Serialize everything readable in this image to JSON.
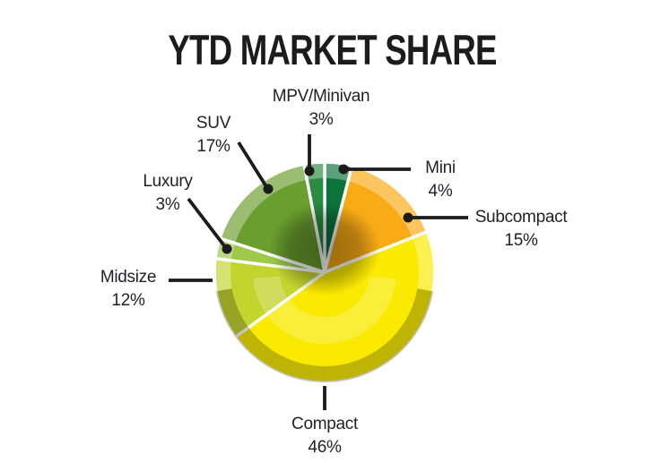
{
  "title": "YTD MARKET SHARE",
  "colors": {
    "title_text": "#1d1b1c",
    "label_text": "#221f26",
    "leader_line": "#1c1a1b",
    "background": "#ffffff"
  },
  "chart_data": {
    "type": "pie",
    "title": "YTD MARKET SHARE",
    "unit": "%",
    "start_angle_deg": 0,
    "direction": "clockwise",
    "legend_position": "callout-labels",
    "slices": [
      {
        "id": "mini",
        "label": "Mini",
        "value": 4,
        "pct_label": "4%",
        "color": "#0d733c"
      },
      {
        "id": "subcompact",
        "label": "Subcompact",
        "value": 15,
        "pct_label": "15%",
        "color": "#f9ab15"
      },
      {
        "id": "compact",
        "label": "Compact",
        "value": 46,
        "pct_label": "46%",
        "color": "#fae900"
      },
      {
        "id": "midsize",
        "label": "Midsize",
        "value": 12,
        "pct_label": "12%",
        "color": "#c3d42f"
      },
      {
        "id": "luxury",
        "label": "Luxury",
        "value": 3,
        "pct_label": "3%",
        "color": "#9dc84a"
      },
      {
        "id": "suv",
        "label": "SUV",
        "value": 17,
        "pct_label": "17%",
        "color": "#6a9e2e"
      },
      {
        "id": "mpv",
        "label": "MPV/Minivan",
        "value": 3,
        "pct_label": "3%",
        "color": "#2a8b41"
      }
    ]
  }
}
